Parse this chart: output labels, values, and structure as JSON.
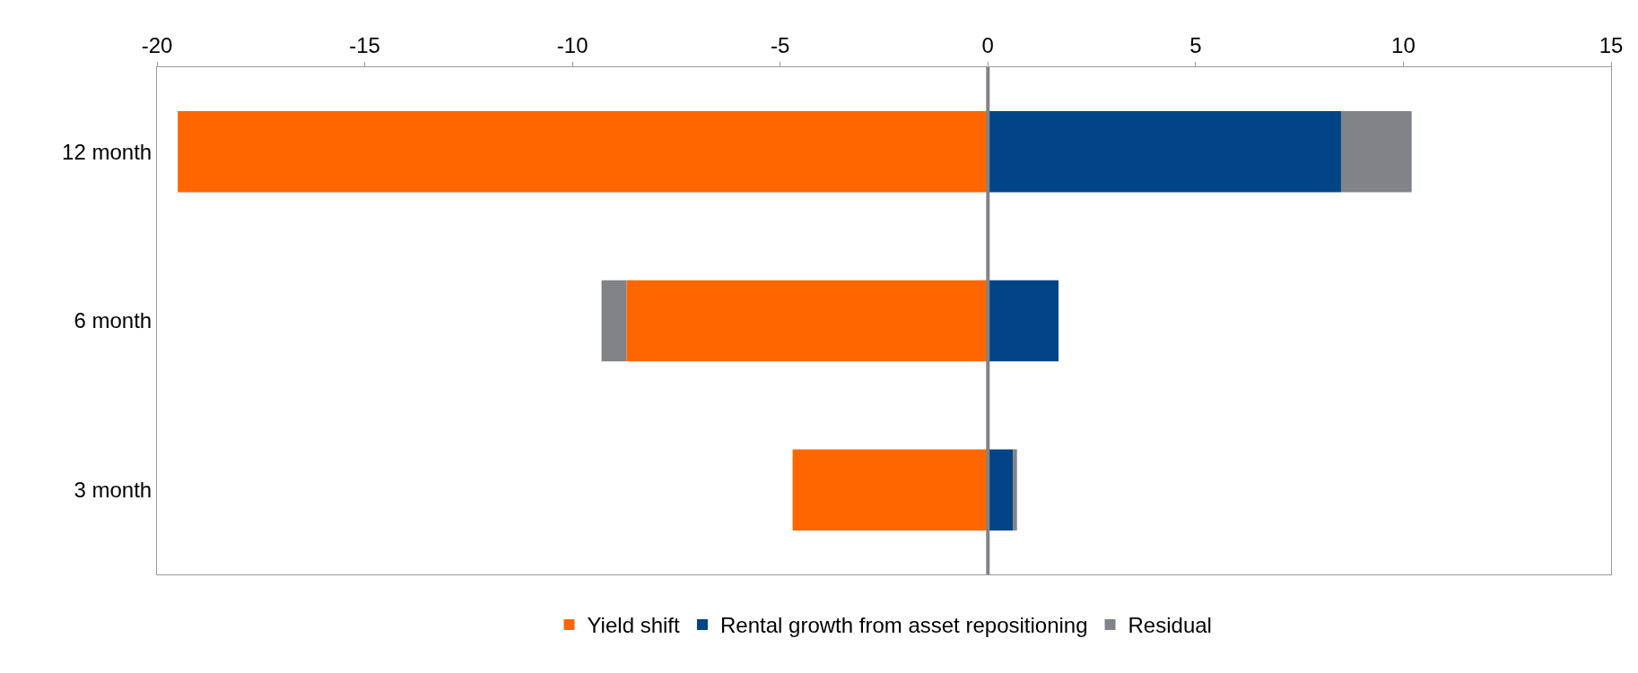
{
  "chart_data": {
    "type": "bar",
    "orientation": "horizontal",
    "stacked": true,
    "categories": [
      "12 month",
      "6 month",
      "3 month"
    ],
    "series": [
      {
        "name": "Yield shift",
        "color": "#ff6600",
        "values": [
          -19.5,
          -8.7,
          -4.7
        ]
      },
      {
        "name": "Rental growth from asset repositioning",
        "color": "#004488",
        "values": [
          8.5,
          1.7,
          0.6
        ]
      },
      {
        "name": "Residual",
        "color": "#808488",
        "values": [
          1.7,
          -0.6,
          0.1
        ]
      }
    ],
    "xlim": [
      -20,
      15
    ],
    "xticks": [
      -20,
      -15,
      -10,
      -5,
      0,
      5,
      10,
      15
    ],
    "ref_lines": [
      {
        "axis": "x",
        "value": 0,
        "color": "#808488"
      }
    ],
    "grid": false,
    "legend": "bottom"
  }
}
